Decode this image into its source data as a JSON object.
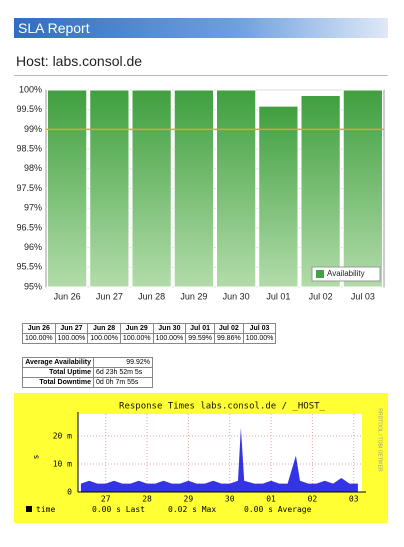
{
  "header": {
    "title": "SLA Report",
    "host": "Host: labs.consol.de"
  },
  "chart_data": [
    {
      "type": "bar",
      "categories": [
        "Jun 26",
        "Jun 27",
        "Jun 28",
        "Jun 29",
        "Jun 30",
        "Jul 01",
        "Jul 02",
        "Jul 03"
      ],
      "series": [
        {
          "name": "Availability",
          "color": "#43a343",
          "values": [
            100,
            100,
            100,
            100,
            100,
            99.59,
            99.86,
            100
          ]
        }
      ],
      "ylim": [
        95,
        100
      ],
      "yticks": [
        {
          "value": 95,
          "label": "95%"
        },
        {
          "value": 95.5,
          "label": "95.5%"
        },
        {
          "value": 96,
          "label": "96%"
        },
        {
          "value": 96.5,
          "label": "96.5%"
        },
        {
          "value": 97,
          "label": "97%"
        },
        {
          "value": 97.5,
          "label": "97.5%"
        },
        {
          "value": 98,
          "label": "98%"
        },
        {
          "value": 98.5,
          "label": "98.5%"
        },
        {
          "value": 99,
          "label": "99%"
        },
        {
          "value": 99.5,
          "label": "99.5%"
        },
        {
          "value": 100,
          "label": "100%"
        }
      ],
      "threshold": 99,
      "threshold_color": "#e8a020",
      "grid": true,
      "legend": "lower right"
    },
    {
      "type": "line",
      "title": "Response Times labs.consol.de / _HOST_",
      "ylabel": "s",
      "side_text": "RRDTOOL / TOBI OETIKER",
      "x": [
        0.4,
        0.6,
        0.8,
        1.0,
        1.2,
        1.4,
        1.6,
        1.8,
        2.0,
        2.2,
        2.4,
        2.6,
        2.8,
        3.0,
        3.2,
        3.4,
        3.6,
        3.8,
        4.0,
        4.2,
        4.27,
        4.35,
        4.6,
        4.8,
        5.0,
        5.2,
        5.4,
        5.6,
        5.7,
        5.9,
        6.1,
        6.3,
        6.5,
        6.7,
        6.9,
        7.1
      ],
      "series": [
        {
          "name": "time",
          "color": "#1010e0",
          "values": [
            0.003,
            0.004,
            0.003,
            0.003,
            0.004,
            0.003,
            0.003,
            0.004,
            0.003,
            0.003,
            0.004,
            0.003,
            0.003,
            0.004,
            0.003,
            0.003,
            0.004,
            0.003,
            0.003,
            0.004,
            0.023,
            0.004,
            0.003,
            0.003,
            0.004,
            0.003,
            0.003,
            0.013,
            0.004,
            0.003,
            0.003,
            0.004,
            0.003,
            0.005,
            0.003,
            0.003
          ]
        }
      ],
      "legend_stats": [
        "0.00 s Last",
        "0.02 s Max",
        "0.00 s Average"
      ],
      "xlim": [
        0.33,
        7.2
      ],
      "xticks": [
        {
          "value": 1,
          "label": "27"
        },
        {
          "value": 2,
          "label": "28"
        },
        {
          "value": 3,
          "label": "29"
        },
        {
          "value": 4,
          "label": "30"
        },
        {
          "value": 5,
          "label": "01"
        },
        {
          "value": 6,
          "label": "02"
        },
        {
          "value": 7,
          "label": "03"
        }
      ],
      "ylim": [
        0,
        0.025
      ],
      "yticks": [
        0,
        {
          "value": 0.01,
          "label": "10 m"
        },
        {
          "value": 0.02,
          "label": "20 m"
        }
      ],
      "grid": true
    }
  ],
  "daily_table": {
    "rows": [
      [
        "100.00%",
        "100.00%",
        "100.00%",
        "100.00%",
        "100.00%",
        "99.59%",
        "99.86%",
        "100.00%"
      ]
    ]
  },
  "summary_table": {
    "rows": [
      [
        "Average Availability",
        "99.92%"
      ],
      [
        "Total Uptime",
        "6d 23h 52m 5s"
      ],
      [
        "Total Downtime",
        "0d 0h 7m 55s"
      ]
    ]
  }
}
